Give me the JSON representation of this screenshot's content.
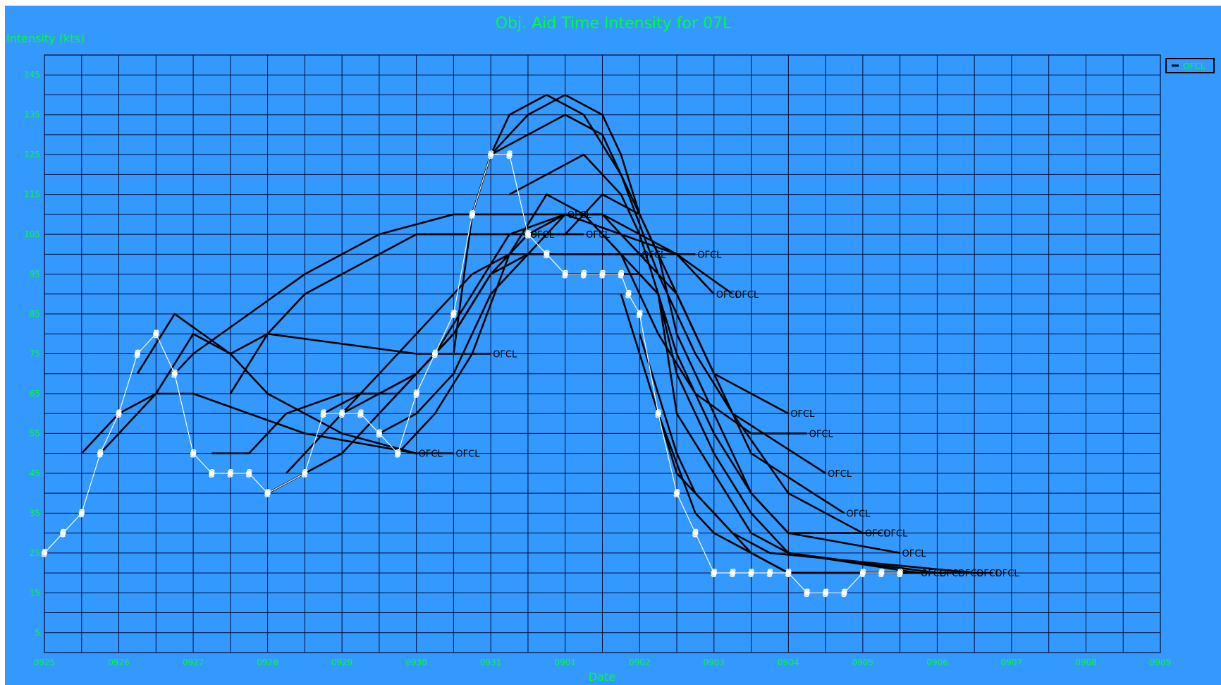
{
  "colors": {
    "background": "#3399ff",
    "plot_background": "#3399ff",
    "grid": "#000a33",
    "axis_text": "#00ff33",
    "forecast_line": "#000000",
    "forecast_label": "#000000",
    "best_track_line": "#ffffff",
    "best_track_marker": "#ffffff"
  },
  "icons": {
    "best_track_marker": "hurricane-symbol-icon"
  },
  "chart_data": {
    "type": "line",
    "title": "Obj. Aid Time Intensity for 07L",
    "xlabel": "Date",
    "ylabel": "Intensity (kts)",
    "xlim": [
      0,
      15
    ],
    "ylim": [
      0,
      150
    ],
    "x_ticks": [
      "0925",
      "0926",
      "0927",
      "0928",
      "0929",
      "0930",
      "0931",
      "0901",
      "0902",
      "0903",
      "0904",
      "0905",
      "0906",
      "0907",
      "0908",
      "0909"
    ],
    "y_ticks": [
      5,
      15,
      25,
      35,
      45,
      55,
      65,
      75,
      85,
      95,
      105,
      115,
      125,
      135,
      145
    ],
    "grid": true,
    "legend": {
      "placement": "top-right",
      "entries": [
        "OFCL"
      ]
    },
    "forecast_label": "OFCL",
    "best_track": {
      "x": [
        0,
        0.25,
        0.5,
        0.75,
        1,
        1.25,
        1.5,
        1.75,
        2,
        2.25,
        2.5,
        2.75,
        3,
        3.5,
        3.75,
        4,
        4.25,
        4.5,
        4.75,
        5,
        5.25,
        5.5,
        5.75,
        6,
        6.25,
        6.5,
        6.75,
        7,
        7.25,
        7.5,
        7.75,
        7.85,
        8,
        8.25,
        8.5,
        8.75,
        9,
        9.25,
        9.5,
        9.75,
        10,
        10.25,
        10.5,
        10.75,
        11,
        11.25,
        11.5
      ],
      "y": [
        25,
        30,
        35,
        50,
        60,
        75,
        80,
        70,
        50,
        45,
        45,
        45,
        40,
        45,
        60,
        60,
        60,
        55,
        50,
        65,
        75,
        85,
        110,
        125,
        125,
        105,
        100,
        95,
        95,
        95,
        95,
        90,
        85,
        60,
        40,
        30,
        20,
        20,
        20,
        20,
        20,
        15,
        15,
        15,
        20,
        20,
        20
      ]
    },
    "series": [
      {
        "name": "OFCL",
        "x": [
          0.5,
          1,
          1.5,
          2,
          3.5,
          5
        ],
        "y": [
          50,
          60,
          65,
          65,
          55,
          50
        ]
      },
      {
        "name": "OFCL",
        "x": [
          0.75,
          1.5,
          2,
          2.5,
          3,
          5,
          6
        ],
        "y": [
          50,
          65,
          80,
          75,
          80,
          75,
          75
        ]
      },
      {
        "name": "OFCL",
        "x": [
          1.25,
          1.75,
          2.5,
          3,
          4,
          5,
          5.5
        ],
        "y": [
          70,
          85,
          75,
          65,
          55,
          50,
          50
        ]
      },
      {
        "name": "OFCL",
        "x": [
          1.75,
          2,
          3.5,
          4.5,
          5.5,
          6.5,
          7
        ],
        "y": [
          70,
          75,
          95,
          105,
          110,
          110,
          110
        ]
      },
      {
        "name": "OFCL",
        "x": [
          2.25,
          2.75,
          3.25,
          4,
          4.5,
          5,
          5.5,
          6,
          6.5
        ],
        "y": [
          50,
          50,
          60,
          65,
          65,
          70,
          80,
          95,
          105
        ]
      },
      {
        "name": "OFCL",
        "x": [
          2.5,
          3,
          3.5,
          4,
          4.5,
          5,
          5.75,
          6.5,
          7.25
        ],
        "y": [
          65,
          80,
          90,
          95,
          100,
          105,
          105,
          105,
          105
        ]
      },
      {
        "name": "OFCL",
        "x": [
          3,
          3.5,
          4,
          4.5,
          5,
          5.5,
          6,
          6.5,
          7.5,
          8
        ],
        "y": [
          40,
          45,
          50,
          60,
          70,
          80,
          95,
          100,
          100,
          100
        ]
      },
      {
        "name": "OFCL",
        "x": [
          3.25,
          3.75,
          4.25,
          4.75,
          5.25,
          5.75,
          6.25,
          7,
          8,
          8.75
        ],
        "y": [
          45,
          55,
          65,
          75,
          85,
          95,
          100,
          100,
          100,
          100
        ]
      },
      {
        "name": "OFCL",
        "x": [
          3.75,
          4.25,
          4.75,
          5.25,
          5.75,
          6.25,
          7,
          7.75,
          8.5,
          9
        ],
        "y": [
          60,
          65,
          65,
          75,
          90,
          105,
          110,
          105,
          100,
          90
        ]
      },
      {
        "name": "OFCL",
        "x": [
          4,
          4.5,
          5,
          5.5,
          6,
          6.5,
          7,
          7.5,
          8,
          8.5,
          9.25
        ],
        "y": [
          60,
          65,
          70,
          80,
          95,
          105,
          110,
          110,
          105,
          100,
          90
        ]
      },
      {
        "name": "OFCL",
        "x": [
          4.5,
          5,
          5.5,
          6,
          6.5,
          7,
          7.5,
          8,
          8.5,
          9,
          10
        ],
        "y": [
          55,
          60,
          70,
          90,
          100,
          110,
          110,
          100,
          90,
          70,
          60
        ]
      },
      {
        "name": "OFCL",
        "x": [
          4.75,
          5.25,
          5.75,
          6.25,
          6.75,
          7.25,
          7.75,
          8.25,
          8.75,
          9.5,
          10.25
        ],
        "y": [
          50,
          60,
          75,
          100,
          115,
          110,
          100,
          80,
          65,
          55,
          55
        ]
      },
      {
        "name": "OFCL",
        "x": [
          5.5,
          5.75,
          6,
          6.25,
          6.75,
          7.25,
          7.75,
          8.25,
          8.75,
          9.25,
          10.5
        ],
        "y": [
          75,
          110,
          125,
          135,
          140,
          135,
          120,
          95,
          75,
          60,
          45
        ]
      },
      {
        "name": "OFCL",
        "x": [
          5.75,
          6,
          6.25,
          6.5,
          7,
          7.5,
          7.75,
          8,
          8.5,
          9,
          9.5,
          10.75
        ],
        "y": [
          110,
          125,
          130,
          135,
          140,
          135,
          125,
          110,
          90,
          70,
          50,
          35
        ]
      },
      {
        "name": "OFCL",
        "x": [
          6,
          6.5,
          7,
          7.5,
          7.75,
          8.25,
          8.75,
          9.25,
          10,
          11
        ],
        "y": [
          125,
          130,
          135,
          130,
          120,
          100,
          80,
          60,
          40,
          30
        ]
      },
      {
        "name": "OFCL",
        "x": [
          6.25,
          6.75,
          7.25,
          7.75,
          8,
          8.25,
          8.5,
          9,
          9.5,
          10,
          11.25
        ],
        "y": [
          115,
          120,
          125,
          115,
          105,
          90,
          75,
          55,
          40,
          30,
          30
        ]
      },
      {
        "name": "OFCL",
        "x": [
          6.5,
          7,
          7.5,
          8,
          8.25,
          8.5,
          9,
          9.5,
          10,
          11.5
        ],
        "y": [
          105,
          105,
          115,
          110,
          100,
          80,
          60,
          40,
          30,
          25
        ]
      },
      {
        "name": "OFCL",
        "x": [
          7,
          7.5,
          8,
          8.25,
          8.5,
          9,
          9.5,
          10,
          11.75
        ],
        "y": [
          95,
          95,
          95,
          90,
          70,
          50,
          35,
          25,
          20
        ]
      },
      {
        "name": "OFCL",
        "x": [
          7.25,
          7.75,
          8.25,
          8.5,
          9,
          9.5,
          10,
          12
        ],
        "y": [
          100,
          100,
          90,
          60,
          45,
          30,
          25,
          20
        ]
      },
      {
        "name": "OFCL",
        "x": [
          7.75,
          8.25,
          8.5,
          9,
          9.5,
          10,
          12.25
        ],
        "y": [
          90,
          60,
          45,
          35,
          25,
          20,
          20
        ]
      },
      {
        "name": "OFCL",
        "x": [
          8,
          8.5,
          8.75,
          9.25,
          9.75,
          12.5
        ],
        "y": [
          80,
          50,
          40,
          30,
          25,
          20
        ]
      },
      {
        "name": "OFCL",
        "x": [
          8.25,
          8.75,
          9,
          9.5,
          10,
          12.75
        ],
        "y": [
          60,
          35,
          30,
          25,
          20,
          20
        ]
      }
    ]
  }
}
